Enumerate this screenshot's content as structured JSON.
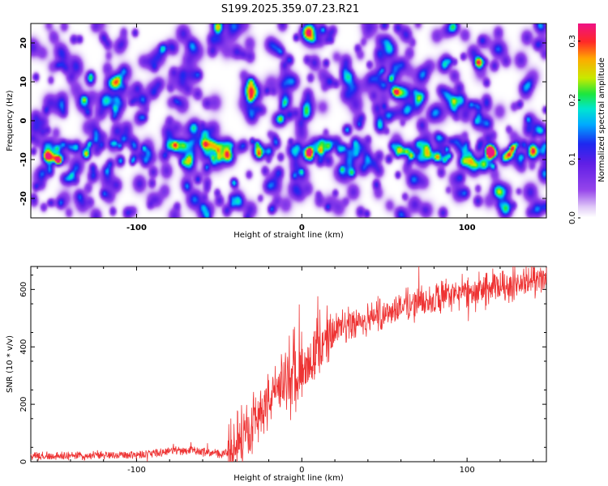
{
  "title": "S199.2025.359.07.23.R21",
  "chart_data": [
    {
      "type": "heatmap",
      "xlabel": "Height of straight line (km)",
      "ylabel": "Frequency (Hz)",
      "xlim": [
        -164,
        148
      ],
      "ylim": [
        -25,
        25
      ],
      "x_ticks": [
        -100,
        0,
        100
      ],
      "y_ticks": [
        -20,
        -10,
        0,
        10,
        20
      ],
      "colorbar": {
        "label": "Normalized spectral amplitude",
        "range": [
          0.0,
          0.33
        ],
        "ticks": [
          0.0,
          0.1,
          0.2,
          0.3
        ]
      },
      "features": {
        "band_center_hz": -8,
        "hotspots": [
          {
            "x_km": 5,
            "y_hz": -8,
            "amplitude": 0.22
          },
          {
            "x_km": 88,
            "y_hz": -9.5,
            "amplitude": 0.25
          },
          {
            "x_km": -80,
            "y_hz": 0,
            "amplitude": 0.15
          },
          {
            "x_km": -15,
            "y_hz": -6,
            "amplitude": 0.14
          }
        ]
      }
    },
    {
      "type": "line",
      "xlabel": "Height of straight line (km)",
      "ylabel": "SNR (10 * v/v)",
      "xlim": [
        -164,
        148
      ],
      "ylim": [
        0,
        680
      ],
      "x_ticks": [
        -100,
        0,
        100
      ],
      "y_ticks": [
        0,
        200,
        400,
        600
      ],
      "series": [
        {
          "name": "SNR",
          "color": "#ee3333",
          "x": [
            -164,
            -140,
            -120,
            -100,
            -90,
            -80,
            -70,
            -60,
            -50,
            -45,
            -40,
            -35,
            -30,
            -25,
            -20,
            -15,
            -10,
            -5,
            0,
            5,
            10,
            15,
            20,
            30,
            40,
            50,
            60,
            70,
            80,
            90,
            100,
            110,
            120,
            130,
            140,
            148
          ],
          "values": [
            20,
            20,
            22,
            25,
            30,
            38,
            40,
            35,
            28,
            30,
            55,
            100,
            140,
            180,
            220,
            250,
            280,
            310,
            340,
            360,
            390,
            420,
            450,
            480,
            500,
            520,
            540,
            555,
            565,
            580,
            590,
            600,
            610,
            620,
            630,
            630
          ]
        }
      ]
    }
  ]
}
